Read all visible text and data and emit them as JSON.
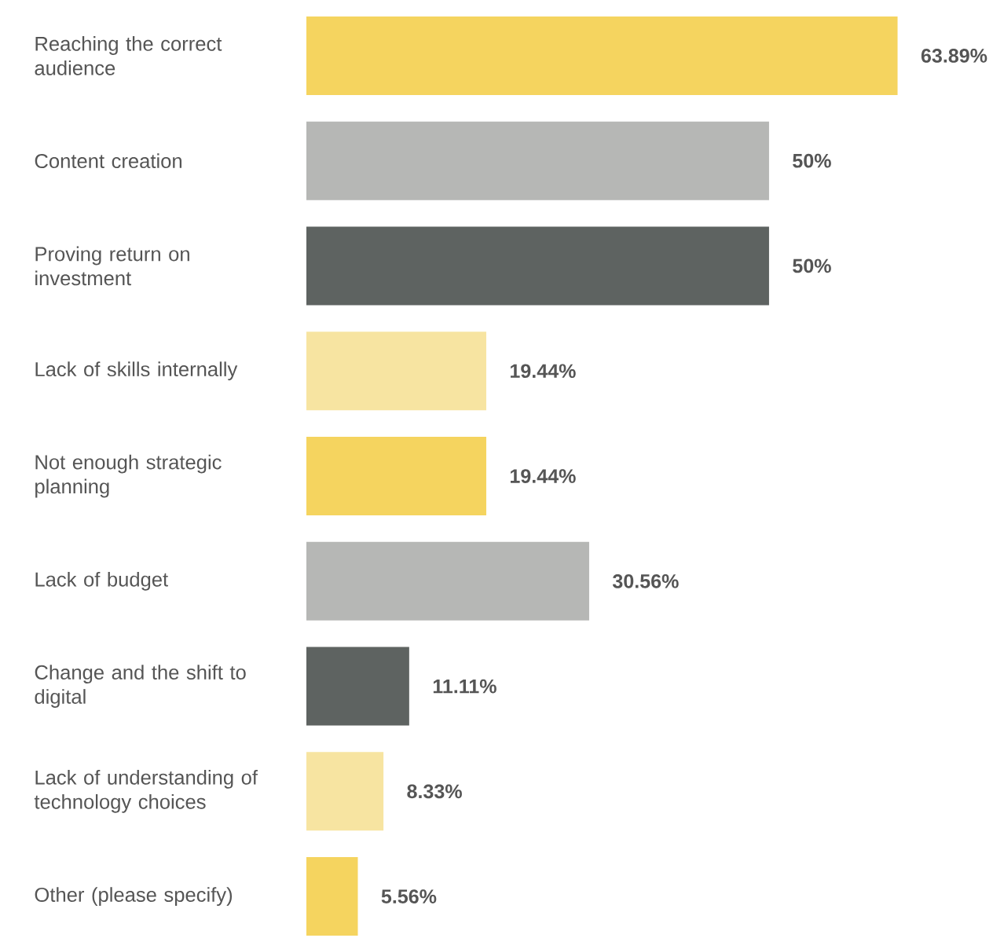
{
  "chart_data": {
    "type": "bar",
    "orientation": "horizontal",
    "categories": [
      "Reaching the correct audience",
      "Content creation",
      "Proving return on investment",
      "Lack of skills internally",
      "Not enough strategic planning",
      "Lack of budget",
      "Change and the shift to digital",
      "Lack of understanding of technology choices",
      "Other (please specify)"
    ],
    "values": [
      63.89,
      50,
      50,
      19.44,
      19.44,
      30.56,
      11.11,
      8.33,
      5.56
    ],
    "value_labels": [
      "63.89%",
      "50%",
      "50%",
      "19.44%",
      "19.44%",
      "30.56%",
      "11.11%",
      "8.33%",
      "5.56%"
    ],
    "colors": [
      "#f5d45f",
      "#b6b7b5",
      "#5e6361",
      "#f7e4a1",
      "#f5d45f",
      "#b6b7b5",
      "#5e6361",
      "#f7e4a1",
      "#f5d45f"
    ]
  }
}
